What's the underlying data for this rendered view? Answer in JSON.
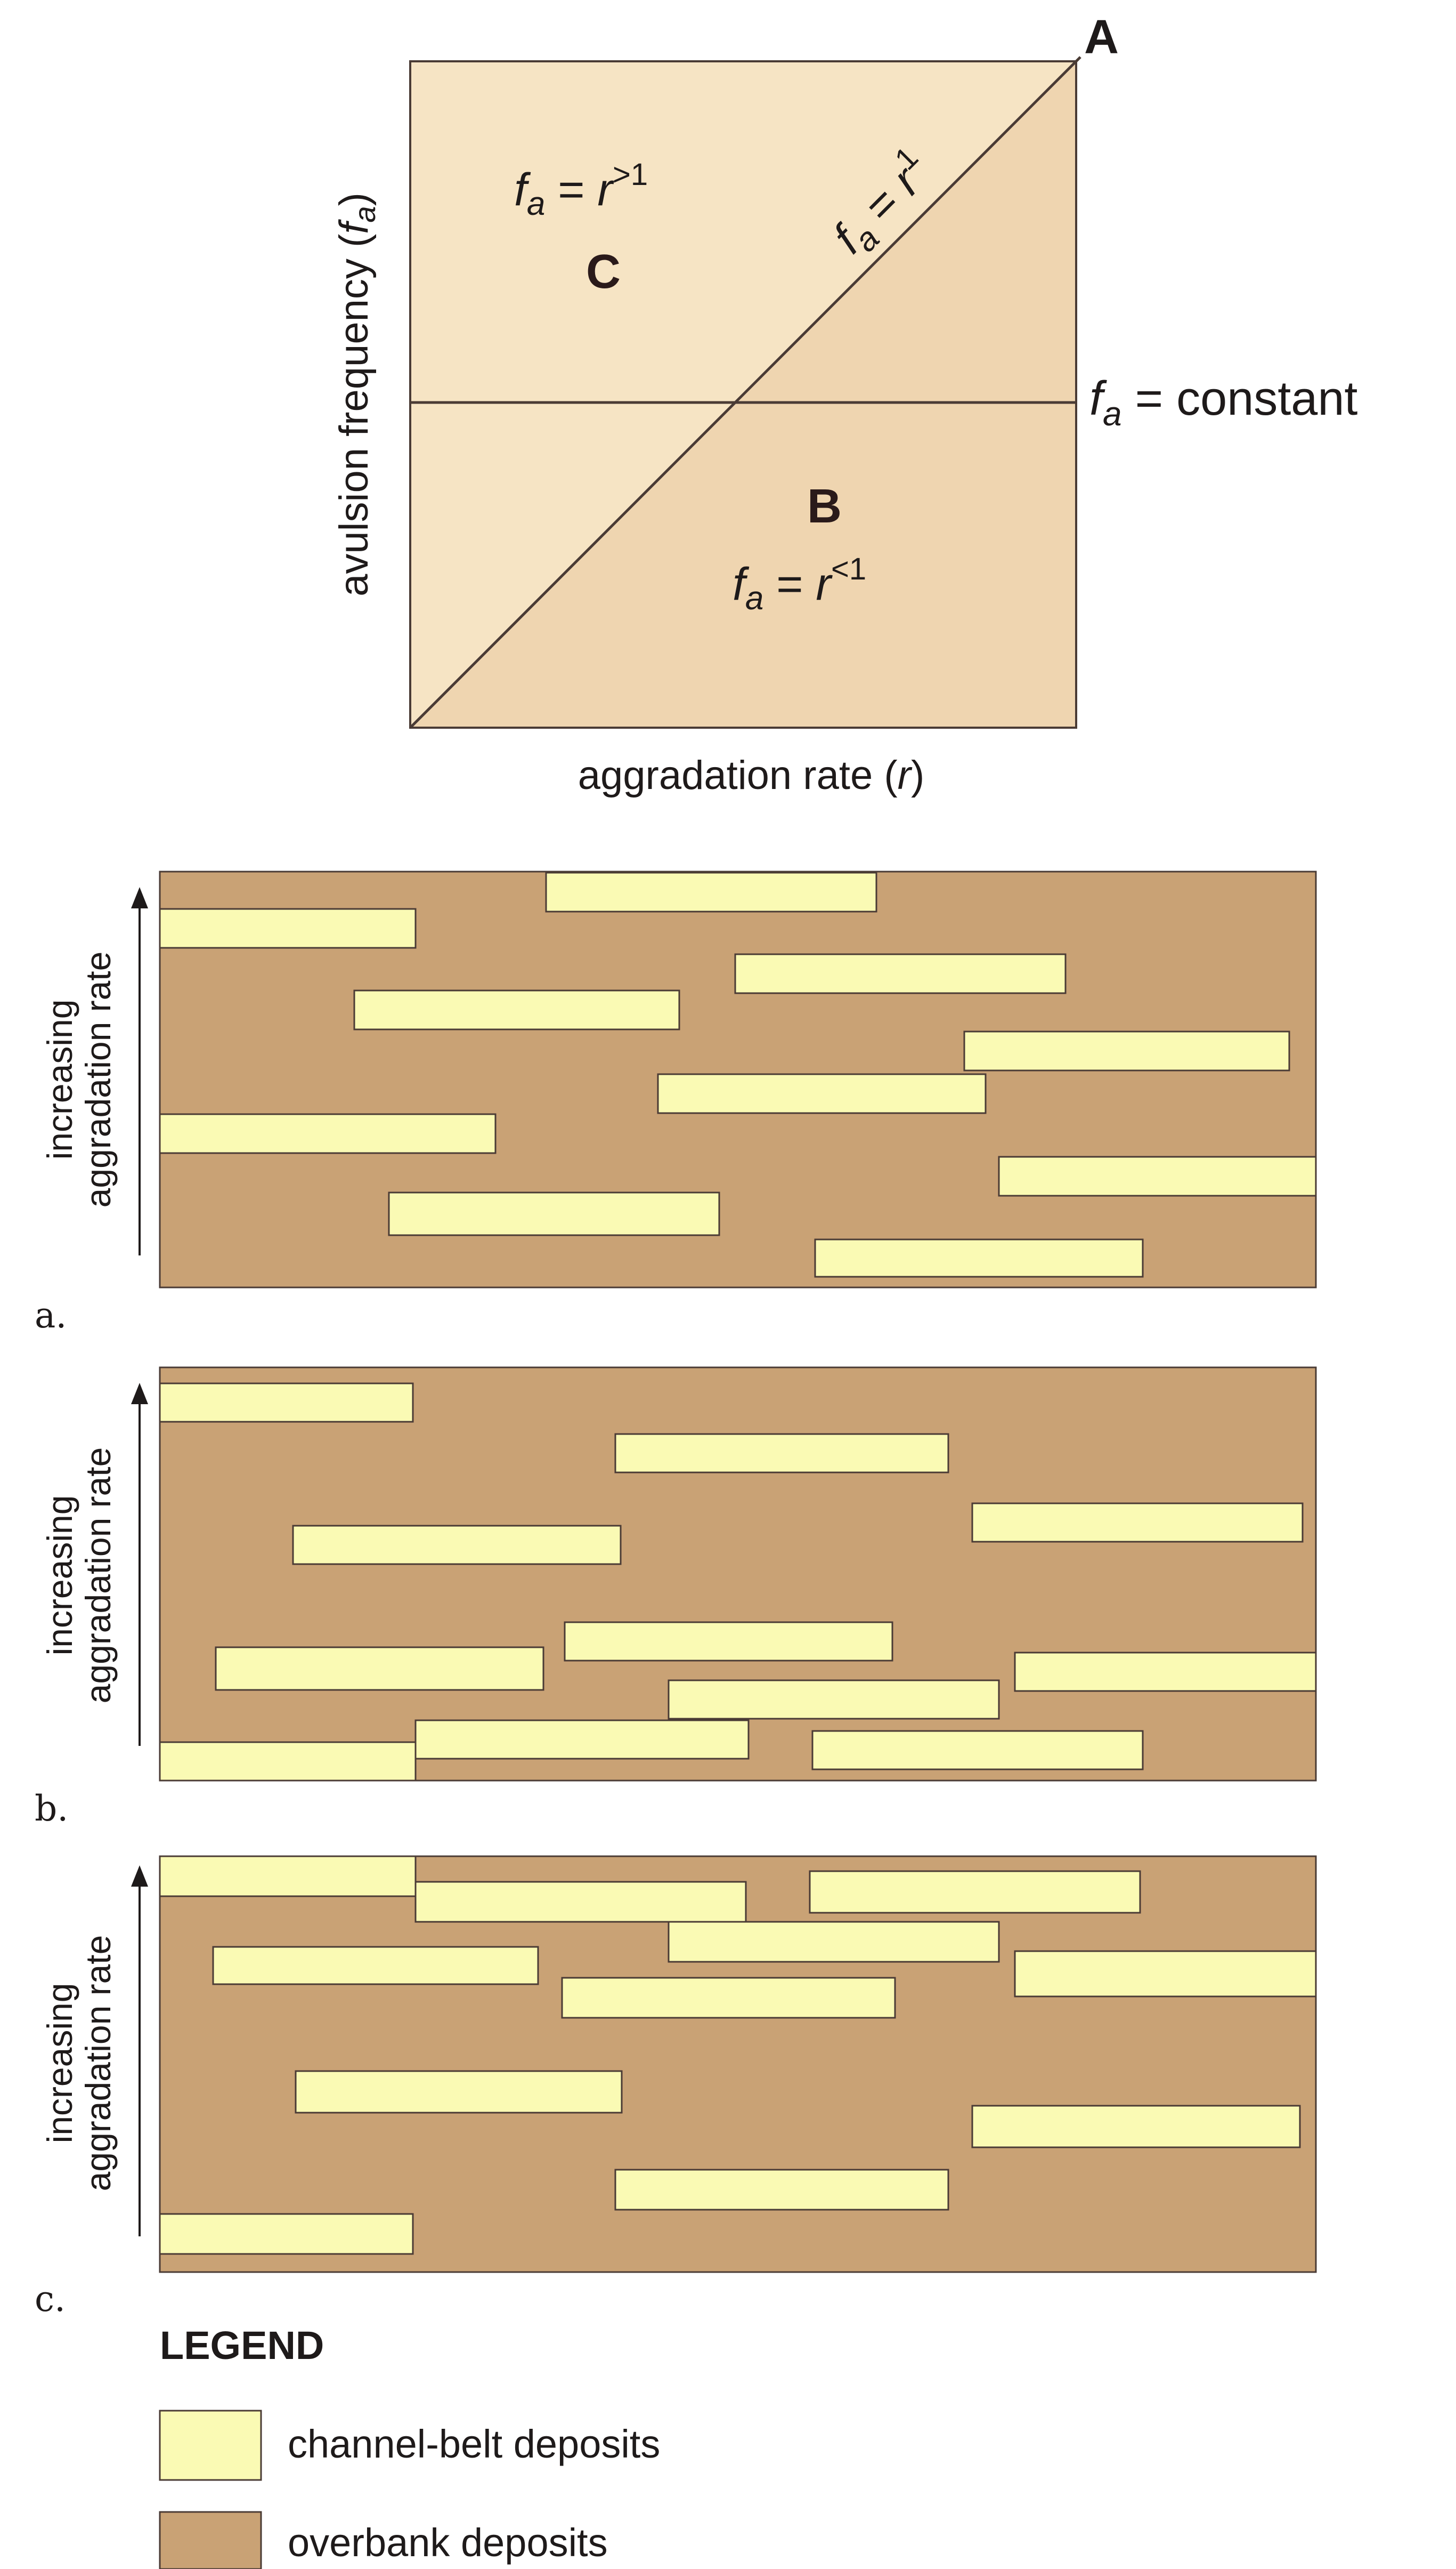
{
  "colors": {
    "channel_belt": "#fafab4",
    "overbank": "#c9a275",
    "chart_upper": "#f6e4c4",
    "chart_lower": "#efd5b0",
    "line": "#4a3b35",
    "text": "#1e1a1a"
  },
  "chart": {
    "y_axis_label": "avulsion frequency (",
    "y_axis_var": "f",
    "y_axis_sub": "a",
    "y_axis_close": ")",
    "x_axis_label": "aggradation rate (",
    "x_axis_var": "r",
    "x_axis_close": ")",
    "corner_label": "A",
    "region_b_label": "B",
    "region_c_label": "C",
    "eq_c": {
      "f": "f",
      "sub": "a",
      "eq": " = ",
      "r": "r",
      "sup": ">1"
    },
    "eq_b": {
      "f": "f",
      "sub": "a",
      "eq": " = ",
      "r": "r",
      "sup": "<1"
    },
    "eq_diag": {
      "f": "f",
      "sub": "a",
      "eq": " = ",
      "r": "r",
      "sup": "1"
    },
    "eq_const": {
      "f": "f",
      "sub": "a",
      "eq": " = constant"
    }
  },
  "panels": [
    {
      "id": "a",
      "letter": "a.",
      "axis_label_1": "increasing",
      "axis_label_2": "aggradation rate",
      "channel_count": 10
    },
    {
      "id": "b",
      "letter": "b.",
      "axis_label_1": "increasing",
      "axis_label_2": "aggradation rate",
      "channel_count": 10
    },
    {
      "id": "c",
      "letter": "c.",
      "axis_label_1": "increasing",
      "axis_label_2": "aggradation rate",
      "channel_count": 10
    }
  ],
  "legend": {
    "title": "LEGEND",
    "items": [
      {
        "label": "channel-belt deposits",
        "color": "#fafab4"
      },
      {
        "label": "overbank deposits",
        "color": "#c9a275"
      }
    ]
  }
}
